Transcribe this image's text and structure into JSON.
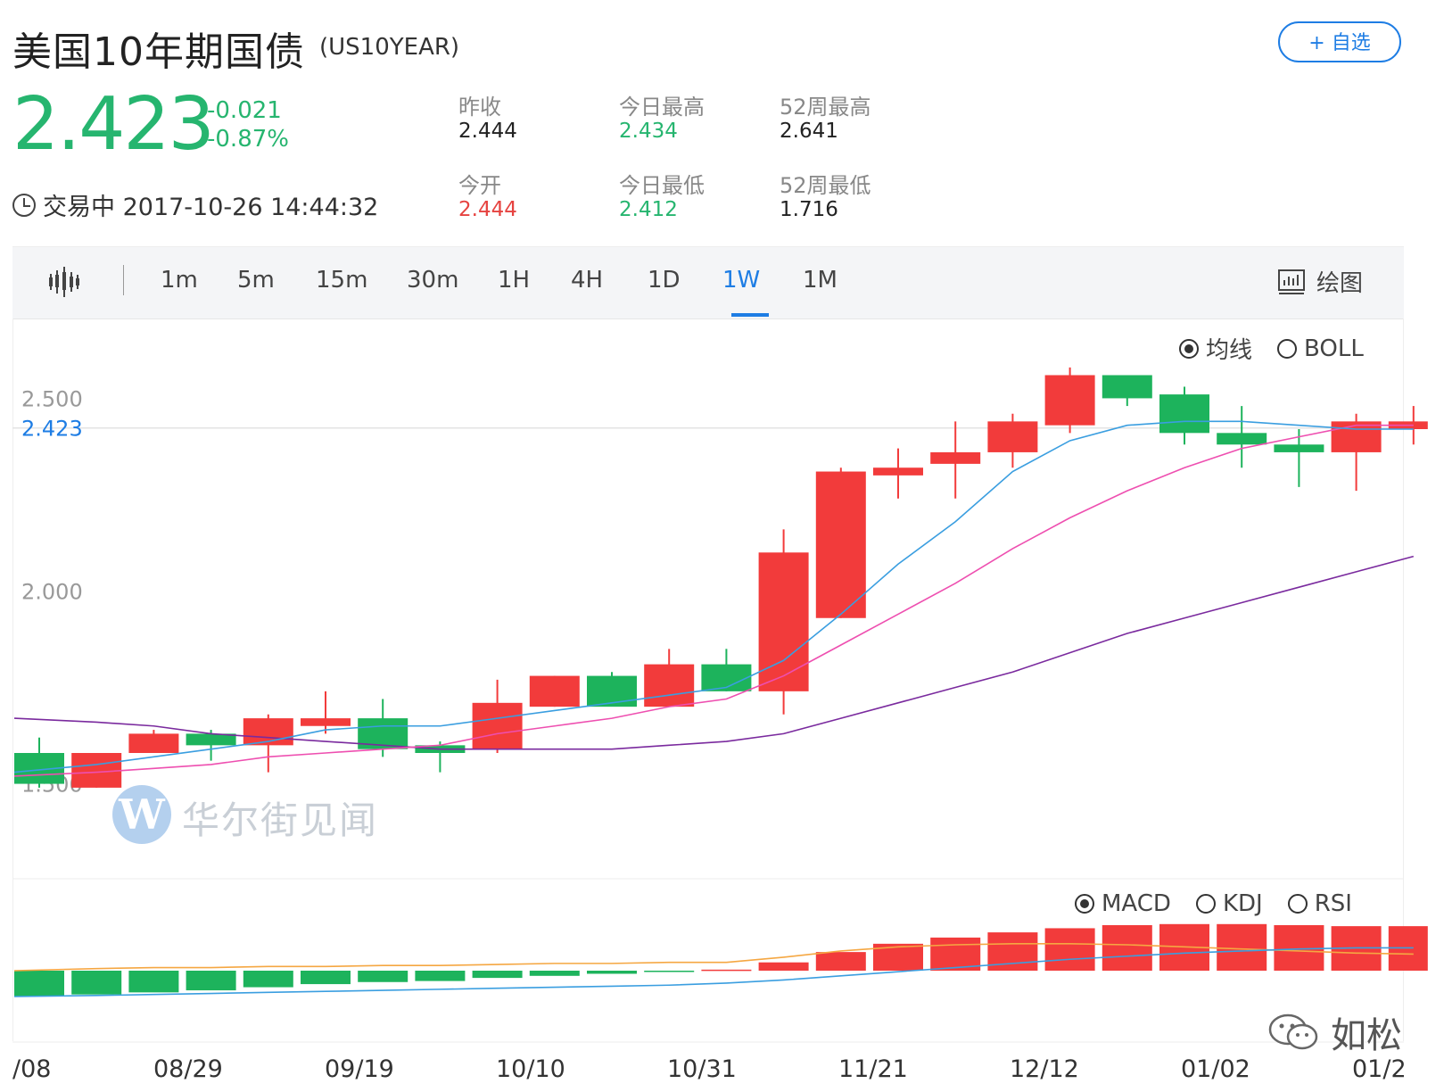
{
  "header": {
    "title": "美国10年期国债",
    "symbol": "(US10YEAR)",
    "fav_label": "+ 自选"
  },
  "quote": {
    "price": "2.423",
    "change": "-0.021",
    "change_pct": "-0.87%",
    "status": "交易中 2017-10-26 14:44:32"
  },
  "stats": [
    {
      "label": "昨收",
      "value": "2.444",
      "color": "#222222"
    },
    {
      "label": "今日最高",
      "value": "2.434",
      "color": "#26b56f"
    },
    {
      "label": "52周最高",
      "value": "2.641",
      "color": "#222222"
    },
    {
      "label": "今开",
      "value": "2.444",
      "color": "#e64340"
    },
    {
      "label": "今日最低",
      "value": "2.412",
      "color": "#26b56f"
    },
    {
      "label": "52周最低",
      "value": "1.716",
      "color": "#222222"
    }
  ],
  "toolbar": {
    "intervals": [
      "1m",
      "5m",
      "15m",
      "30m",
      "1H",
      "4H",
      "1D",
      "1W",
      "1M"
    ],
    "active": "1W",
    "draw_label": "绘图"
  },
  "overlay_options": {
    "ma": "均线",
    "boll": "BOLL",
    "selected": "ma"
  },
  "indicator_options": {
    "macd": "MACD",
    "kdj": "KDJ",
    "rsi": "RSI",
    "selected": "macd"
  },
  "watermark": {
    "brand": "华尔街见闻",
    "logo_letter": "W",
    "author": "如松"
  },
  "colors": {
    "up": "#f23b3b",
    "down": "#1db35c",
    "accent": "#1e7de4",
    "ma_blue": "#3a9ee0",
    "ma_pink": "#ee4fb0",
    "ma_purple": "#7a2a9e",
    "macd_orange": "#f5a742"
  },
  "chart_data": {
    "type": "candlestick",
    "ylabels": [
      "2.500",
      "2.000",
      "1.500"
    ],
    "current_price_label": "2.423",
    "current_price": 2.423,
    "ylim": [
      1.3,
      2.7
    ],
    "xlabels": [
      "/08",
      "08/29",
      "09/19",
      "10/10",
      "10/31",
      "11/21",
      "12/12",
      "01/02",
      "01/2"
    ],
    "candles": [
      {
        "o": 1.58,
        "h": 1.62,
        "l": 1.49,
        "c": 1.5
      },
      {
        "o": 1.49,
        "h": 1.58,
        "l": 1.49,
        "c": 1.58
      },
      {
        "o": 1.58,
        "h": 1.64,
        "l": 1.58,
        "c": 1.63
      },
      {
        "o": 1.63,
        "h": 1.64,
        "l": 1.56,
        "c": 1.6
      },
      {
        "o": 1.6,
        "h": 1.68,
        "l": 1.53,
        "c": 1.67
      },
      {
        "o": 1.65,
        "h": 1.74,
        "l": 1.63,
        "c": 1.67
      },
      {
        "o": 1.67,
        "h": 1.72,
        "l": 1.57,
        "c": 1.59
      },
      {
        "o": 1.6,
        "h": 1.61,
        "l": 1.53,
        "c": 1.58
      },
      {
        "o": 1.59,
        "h": 1.77,
        "l": 1.58,
        "c": 1.71
      },
      {
        "o": 1.7,
        "h": 1.78,
        "l": 1.7,
        "c": 1.78
      },
      {
        "o": 1.78,
        "h": 1.79,
        "l": 1.71,
        "c": 1.7
      },
      {
        "o": 1.7,
        "h": 1.85,
        "l": 1.7,
        "c": 1.81
      },
      {
        "o": 1.81,
        "h": 1.85,
        "l": 1.74,
        "c": 1.74
      },
      {
        "o": 1.74,
        "h": 2.16,
        "l": 1.68,
        "c": 2.1
      },
      {
        "o": 1.93,
        "h": 2.32,
        "l": 1.93,
        "c": 2.31
      },
      {
        "o": 2.3,
        "h": 2.37,
        "l": 2.24,
        "c": 2.32
      },
      {
        "o": 2.33,
        "h": 2.44,
        "l": 2.24,
        "c": 2.36
      },
      {
        "o": 2.36,
        "h": 2.46,
        "l": 2.32,
        "c": 2.44
      },
      {
        "o": 2.43,
        "h": 2.58,
        "l": 2.41,
        "c": 2.56
      },
      {
        "o": 2.56,
        "h": 2.56,
        "l": 2.48,
        "c": 2.5
      },
      {
        "o": 2.51,
        "h": 2.53,
        "l": 2.38,
        "c": 2.41
      },
      {
        "o": 2.41,
        "h": 2.48,
        "l": 2.32,
        "c": 2.38
      },
      {
        "o": 2.38,
        "h": 2.42,
        "l": 2.27,
        "c": 2.36
      },
      {
        "o": 2.36,
        "h": 2.46,
        "l": 2.26,
        "c": 2.44
      },
      {
        "o": 2.42,
        "h": 2.48,
        "l": 2.38,
        "c": 2.44
      }
    ],
    "ma_fast": [
      1.53,
      1.55,
      1.57,
      1.59,
      1.61,
      1.64,
      1.65,
      1.65,
      1.67,
      1.69,
      1.71,
      1.73,
      1.75,
      1.82,
      1.94,
      2.07,
      2.18,
      2.31,
      2.39,
      2.43,
      2.44,
      2.44,
      2.43,
      2.42,
      2.42
    ],
    "ma_mid": [
      1.52,
      1.53,
      1.54,
      1.55,
      1.57,
      1.58,
      1.59,
      1.6,
      1.63,
      1.65,
      1.67,
      1.7,
      1.72,
      1.78,
      1.86,
      1.94,
      2.02,
      2.11,
      2.19,
      2.26,
      2.32,
      2.37,
      2.4,
      2.43,
      2.43
    ],
    "ma_slow": [
      1.67,
      1.66,
      1.65,
      1.63,
      1.62,
      1.61,
      1.6,
      1.59,
      1.59,
      1.59,
      1.59,
      1.6,
      1.61,
      1.63,
      1.67,
      1.71,
      1.75,
      1.79,
      1.84,
      1.89,
      1.93,
      1.97,
      2.01,
      2.05,
      2.09
    ],
    "macd_hist": [
      -0.25,
      -0.23,
      -0.21,
      -0.19,
      -0.16,
      -0.13,
      -0.11,
      -0.1,
      -0.07,
      -0.05,
      -0.03,
      -0.01,
      0.01,
      0.08,
      0.18,
      0.26,
      0.32,
      0.37,
      0.41,
      0.44,
      0.45,
      0.45,
      0.44,
      0.43,
      0.43
    ],
    "macd_dif": [
      0.0,
      0.02,
      0.03,
      0.03,
      0.04,
      0.04,
      0.05,
      0.05,
      0.06,
      0.07,
      0.07,
      0.08,
      0.08,
      0.13,
      0.19,
      0.23,
      0.25,
      0.26,
      0.26,
      0.25,
      0.23,
      0.21,
      0.19,
      0.17,
      0.16
    ],
    "macd_dea": [
      -0.25,
      -0.24,
      -0.23,
      -0.22,
      -0.21,
      -0.2,
      -0.19,
      -0.18,
      -0.17,
      -0.16,
      -0.15,
      -0.14,
      -0.12,
      -0.09,
      -0.05,
      -0.01,
      0.03,
      0.07,
      0.11,
      0.14,
      0.17,
      0.19,
      0.21,
      0.22,
      0.22
    ]
  }
}
